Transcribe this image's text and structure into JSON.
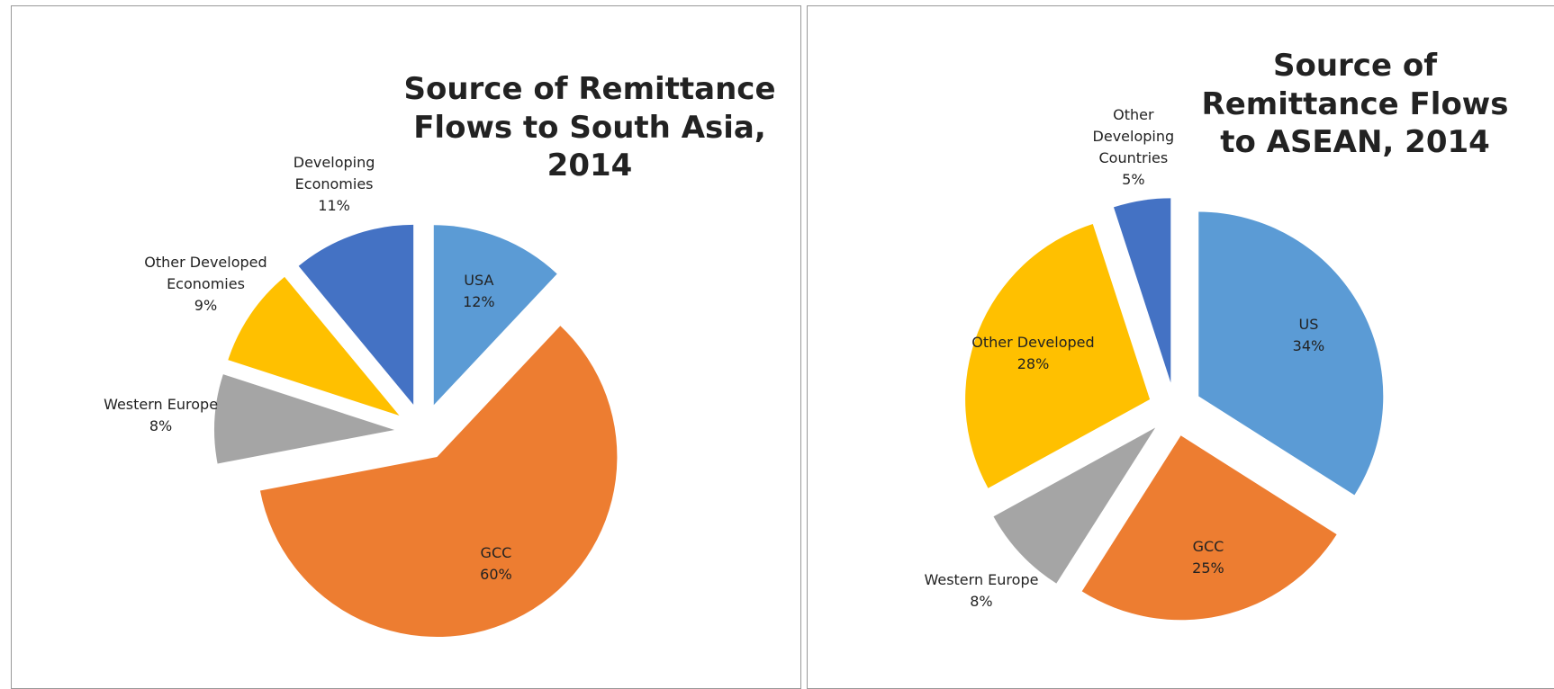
{
  "chart_data": [
    {
      "type": "pie",
      "title": "Source of Remittance Flows to South Asia, 2014",
      "categories": [
        "USA",
        "GCC",
        "Western Europe",
        "Other Developed Economies",
        "Developing Economies"
      ],
      "values": [
        12,
        60,
        8,
        9,
        11
      ],
      "value_labels": [
        "12%",
        "60%",
        "8%",
        "9%",
        "11%"
      ],
      "colors": [
        "#5b9bd5",
        "#ed7d31",
        "#a5a5a5",
        "#ffc000",
        "#4472c4"
      ]
    },
    {
      "type": "pie",
      "title": "Source of Remittance Flows to ASEAN, 2014",
      "categories": [
        "US",
        "GCC",
        "Western Europe",
        "Other Developed",
        "Other Developing Countries"
      ],
      "values": [
        34,
        25,
        8,
        28,
        5
      ],
      "value_labels": [
        "34%",
        "25%",
        "8%",
        "28%",
        "5%"
      ],
      "colors": [
        "#5b9bd5",
        "#ed7d31",
        "#a5a5a5",
        "#ffc000",
        "#4472c4"
      ]
    }
  ]
}
